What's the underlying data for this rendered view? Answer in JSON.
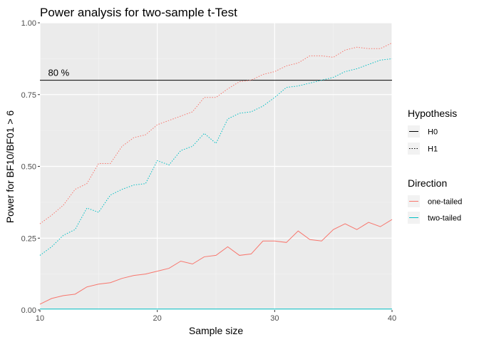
{
  "chart_data": {
    "type": "line",
    "title": "Power analysis for two-sample t-Test",
    "xlabel": "Sample size",
    "ylabel": "Power for BF10/BF01 > 6",
    "xlim": [
      10,
      40
    ],
    "ylim": [
      0,
      1
    ],
    "x_ticks": [
      10,
      20,
      30,
      40
    ],
    "y_ticks": [
      0.0,
      0.25,
      0.5,
      0.75,
      1.0
    ],
    "y_tick_labels": [
      "0.00",
      "0.25",
      "0.50",
      "0.75",
      "1.00"
    ],
    "grid": true,
    "background": "#ebebeb",
    "legend_position": "right",
    "reference_line": {
      "y": 0.8,
      "label": "80 %"
    },
    "legends": [
      {
        "title": "Hypothesis",
        "entries": [
          {
            "label": "H0",
            "linetype": "solid"
          },
          {
            "label": "H1",
            "linetype": "dotted"
          }
        ]
      },
      {
        "title": "Direction",
        "entries": [
          {
            "label": "one-tailed",
            "color": "#F8766D"
          },
          {
            "label": "two-tailed",
            "color": "#00BFC4"
          }
        ]
      }
    ],
    "x": [
      10,
      11,
      12,
      13,
      14,
      15,
      16,
      17,
      18,
      19,
      20,
      21,
      22,
      23,
      24,
      25,
      26,
      27,
      28,
      29,
      30,
      31,
      32,
      33,
      34,
      35,
      36,
      37,
      38,
      39,
      40
    ],
    "series": [
      {
        "name": "H1 one-tailed",
        "hypothesis": "H1",
        "direction": "one-tailed",
        "color": "#F8766D",
        "linetype": "dotted",
        "values": [
          0.3,
          0.33,
          0.365,
          0.42,
          0.44,
          0.51,
          0.51,
          0.57,
          0.6,
          0.61,
          0.645,
          0.66,
          0.675,
          0.69,
          0.74,
          0.74,
          0.77,
          0.795,
          0.8,
          0.82,
          0.83,
          0.85,
          0.86,
          0.885,
          0.885,
          0.88,
          0.905,
          0.915,
          0.91,
          0.91,
          0.93
        ]
      },
      {
        "name": "H1 two-tailed",
        "hypothesis": "H1",
        "direction": "two-tailed",
        "color": "#00BFC4",
        "linetype": "dotted",
        "values": [
          0.19,
          0.22,
          0.26,
          0.28,
          0.355,
          0.34,
          0.4,
          0.42,
          0.435,
          0.44,
          0.52,
          0.505,
          0.555,
          0.57,
          0.615,
          0.58,
          0.665,
          0.685,
          0.69,
          0.71,
          0.74,
          0.775,
          0.78,
          0.79,
          0.8,
          0.81,
          0.83,
          0.84,
          0.855,
          0.87,
          0.875
        ]
      },
      {
        "name": "H0 one-tailed",
        "hypothesis": "H0",
        "direction": "one-tailed",
        "color": "#F8766D",
        "linetype": "solid",
        "values": [
          0.02,
          0.04,
          0.05,
          0.055,
          0.08,
          0.09,
          0.095,
          0.11,
          0.12,
          0.125,
          0.135,
          0.145,
          0.17,
          0.16,
          0.185,
          0.19,
          0.22,
          0.19,
          0.195,
          0.24,
          0.24,
          0.235,
          0.275,
          0.245,
          0.24,
          0.28,
          0.3,
          0.28,
          0.305,
          0.29,
          0.315
        ]
      },
      {
        "name": "H0 two-tailed",
        "hypothesis": "H0",
        "direction": "two-tailed",
        "color": "#00BFC4",
        "linetype": "solid",
        "values": [
          0.003,
          0.003,
          0.003,
          0.003,
          0.003,
          0.003,
          0.003,
          0.003,
          0.003,
          0.003,
          0.003,
          0.003,
          0.003,
          0.003,
          0.003,
          0.003,
          0.003,
          0.003,
          0.003,
          0.003,
          0.003,
          0.003,
          0.003,
          0.003,
          0.003,
          0.003,
          0.003,
          0.003,
          0.003,
          0.003,
          0.003
        ]
      }
    ]
  }
}
